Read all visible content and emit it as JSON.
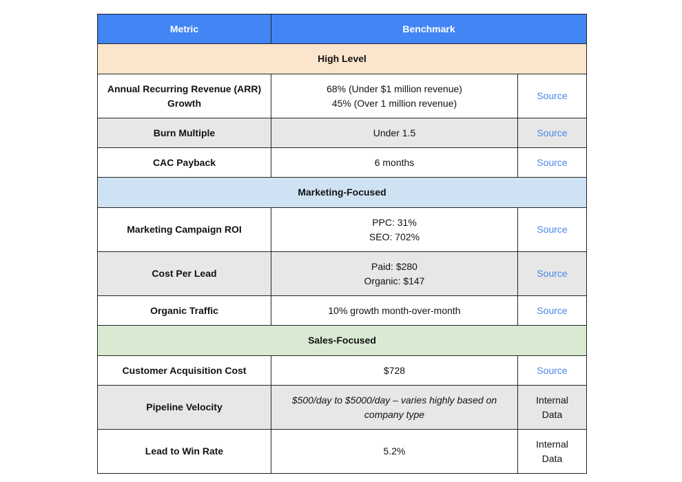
{
  "header": {
    "metric": "Metric",
    "benchmark": "Benchmark"
  },
  "colors": {
    "header": "#4285f4",
    "high_level": "#fce5cd",
    "marketing": "#cfe2f3",
    "sales": "#d9ead3",
    "gray_row": "#e7e7e7",
    "link": "#4a86e8"
  },
  "sections": [
    {
      "title": "High Level",
      "rows": [
        {
          "metric": "Annual Recurring Revenue (ARR) Growth",
          "benchmark": [
            "68% (Under $1 million revenue)",
            "45% (Over 1 million revenue)"
          ],
          "source": "Source"
        },
        {
          "metric": "Burn Multiple",
          "benchmark": [
            "Under 1.5"
          ],
          "source": "Source"
        },
        {
          "metric": "CAC Payback",
          "benchmark": [
            "6 months"
          ],
          "source": "Source"
        }
      ]
    },
    {
      "title": "Marketing-Focused",
      "rows": [
        {
          "metric": "Marketing Campaign ROI",
          "benchmark": [
            "PPC: 31%",
            "SEO: 702%"
          ],
          "source": "Source"
        },
        {
          "metric": "Cost Per Lead",
          "benchmark": [
            "Paid: $280",
            "Organic: $147"
          ],
          "source": "Source"
        },
        {
          "metric": "Organic Traffic",
          "benchmark": [
            "10% growth month-over-month"
          ],
          "source": "Source"
        }
      ]
    },
    {
      "title": "Sales-Focused",
      "rows": [
        {
          "metric": "Customer Acquisition Cost",
          "benchmark": [
            "$728"
          ],
          "source": "Source"
        },
        {
          "metric": "Pipeline Velocity",
          "benchmark": [
            "$500/day to $5000/day – varies highly based on company type"
          ],
          "source": "Internal Data"
        },
        {
          "metric": "Lead to Win Rate",
          "benchmark": [
            "5.2%"
          ],
          "source": "Internal Data"
        }
      ]
    }
  ]
}
